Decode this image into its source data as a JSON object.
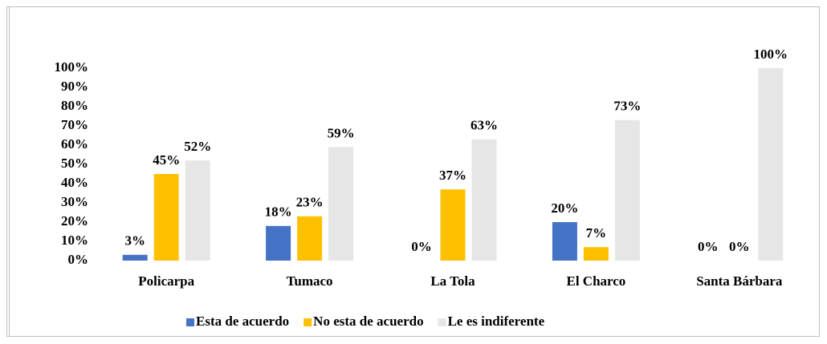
{
  "chart_data": {
    "type": "bar",
    "categories": [
      "Policarpa",
      "Tumaco",
      "La Tola",
      "El Charco",
      "Santa Bárbara"
    ],
    "series": [
      {
        "name": "Esta de acuerdo",
        "color": "#4472c4",
        "values": [
          3,
          18,
          0,
          20,
          0
        ],
        "value_labels": [
          "3%",
          "18%",
          "0%",
          "20%",
          "0%"
        ]
      },
      {
        "name": "No esta de acuerdo",
        "color": "#ffc000",
        "values": [
          45,
          23,
          37,
          7,
          0
        ],
        "value_labels": [
          "45%",
          "23%",
          "37%",
          "7%",
          "0%"
        ]
      },
      {
        "name": "Le es indiferente",
        "color": "#e7e6e6",
        "values": [
          52,
          59,
          63,
          73,
          100
        ],
        "value_labels": [
          "52%",
          "59%",
          "63%",
          "73%",
          "100%"
        ]
      }
    ],
    "ylim": [
      0,
      100
    ],
    "yticks": [
      {
        "value": 0,
        "label": "0%"
      },
      {
        "value": 10,
        "label": "10%"
      },
      {
        "value": 20,
        "label": "20%"
      },
      {
        "value": 30,
        "label": "30%"
      },
      {
        "value": 40,
        "label": "40%"
      },
      {
        "value": 50,
        "label": "50%"
      },
      {
        "value": 60,
        "label": "60%"
      },
      {
        "value": 70,
        "label": "70%"
      },
      {
        "value": 80,
        "label": "80%"
      },
      {
        "value": 90,
        "label": "90%"
      },
      {
        "value": 100,
        "label": "100%"
      }
    ],
    "grid": false,
    "legend": "bottom"
  }
}
